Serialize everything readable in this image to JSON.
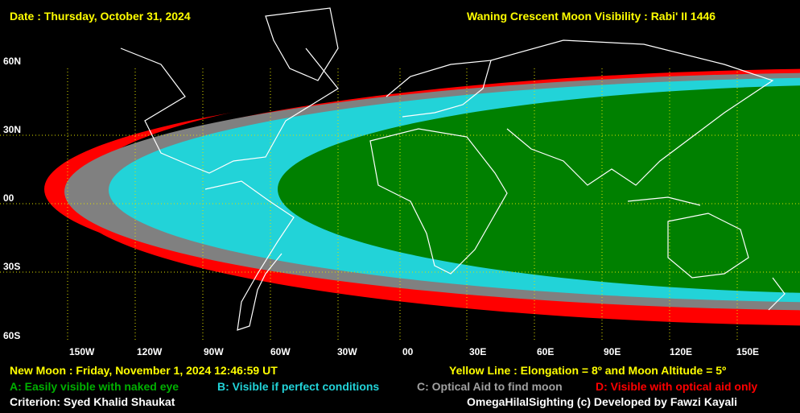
{
  "header": {
    "date": "Date : Thursday, October 31, 2024",
    "title": "Waning Crescent Moon Visibility : Rabi' II 1446"
  },
  "lat_labels": [
    "60N",
    "30N",
    "00",
    "30S",
    "60S"
  ],
  "lon_labels": [
    "150W",
    "120W",
    "90W",
    "60W",
    "30W",
    "00",
    "30E",
    "60E",
    "90E",
    "120E",
    "150E"
  ],
  "footer": {
    "new_moon": "New Moon : Friday, November 1, 2024  12:46:59  UT",
    "yellow_line": "Yellow Line : Elongation = 8º  and Moon Altitude = 5º",
    "criterion": "Criterion: Syed Khalid Shaukat",
    "credit": "OmegaHilalSighting  (c)  Developed by Fawzi Kayali"
  },
  "legend": {
    "a": "A: Easily visible with naked eye",
    "b": "B: Visible if perfect conditions",
    "c": "C: Optical Aid to find moon",
    "d": "D: Visible with optical aid only"
  },
  "colors": {
    "zone_a": "#008000",
    "zone_b": "#22D3D8",
    "zone_c": "#808080",
    "zone_d": "#FF0000",
    "not_visible": "#000000",
    "header_text": "#FFFF00",
    "grid": "#E0E000",
    "coast": "#FFFFFF"
  }
}
